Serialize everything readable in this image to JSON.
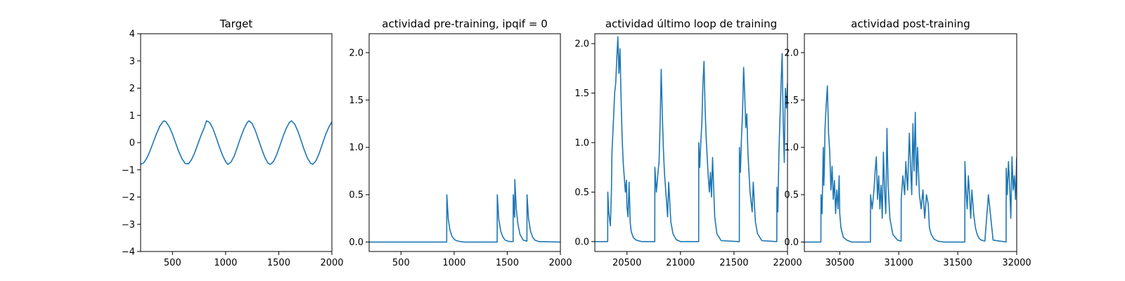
{
  "chart_data": [
    {
      "type": "line",
      "title": "Target",
      "xlabel": "",
      "ylabel": "",
      "xlim": [
        200,
        2000
      ],
      "ylim": [
        -4,
        4
      ],
      "xticks": [
        500,
        1000,
        1500,
        2000
      ],
      "xtick_labels": [
        "500",
        "1000",
        "1500",
        "2000"
      ],
      "yticks": [
        -4,
        -3,
        -2,
        -1,
        0,
        1,
        2,
        3,
        4
      ],
      "ytick_labels": [
        "−4",
        "−3",
        "−2",
        "−1",
        "0",
        "1",
        "2",
        "3",
        "4"
      ],
      "grid": false,
      "series": [
        {
          "color": "#1f77b4",
          "x": [
            200,
            230,
            260,
            290,
            320,
            350,
            380,
            410,
            420,
            440,
            470,
            500,
            530,
            560,
            590,
            620,
            650,
            680,
            710,
            740,
            770,
            800,
            820,
            850,
            880,
            910,
            940,
            970,
            1000,
            1020,
            1050,
            1080,
            1110,
            1140,
            1170,
            1200,
            1220,
            1250,
            1280,
            1310,
            1340,
            1370,
            1400,
            1420,
            1450,
            1480,
            1510,
            1540,
            1570,
            1600,
            1620,
            1650,
            1680,
            1710,
            1740,
            1770,
            1800,
            1820,
            1850,
            1880,
            1910,
            1940,
            1970,
            2000
          ],
          "y": [
            -0.8,
            -0.74,
            -0.56,
            -0.29,
            0.02,
            0.33,
            0.6,
            0.77,
            0.8,
            0.76,
            0.58,
            0.31,
            -0.02,
            -0.34,
            -0.6,
            -0.77,
            -0.78,
            -0.62,
            -0.36,
            -0.04,
            0.28,
            0.56,
            0.8,
            0.74,
            0.52,
            0.2,
            -0.14,
            -0.46,
            -0.7,
            -0.8,
            -0.72,
            -0.5,
            -0.17,
            0.17,
            0.48,
            0.72,
            0.8,
            0.7,
            0.44,
            0.1,
            -0.24,
            -0.55,
            -0.76,
            -0.8,
            -0.7,
            -0.45,
            -0.12,
            0.22,
            0.52,
            0.74,
            0.8,
            0.68,
            0.42,
            0.08,
            -0.27,
            -0.57,
            -0.76,
            -0.8,
            -0.67,
            -0.4,
            -0.06,
            0.28,
            0.56,
            0.76
          ]
        }
      ]
    },
    {
      "type": "line",
      "title": "actividad pre-training, ipqif = 0",
      "xlabel": "",
      "ylabel": "",
      "xlim": [
        200,
        2000
      ],
      "ylim": [
        -0.1,
        2.2
      ],
      "xticks": [
        500,
        1000,
        1500,
        2000
      ],
      "xtick_labels": [
        "500",
        "1000",
        "1500",
        "2000"
      ],
      "yticks": [
        0,
        0.5,
        1,
        1.5,
        2
      ],
      "ytick_labels": [
        "0.0",
        "0.5",
        "1.0",
        "1.5",
        "2.0"
      ],
      "grid": false,
      "series": [
        {
          "color": "#1f77b4",
          "x": [
            200,
            930,
            931,
            945,
            960,
            980,
            1000,
            1020,
            1060,
            1100,
            1405,
            1406,
            1420,
            1440,
            1460,
            1480,
            1520,
            1555,
            1556,
            1565,
            1570,
            1571,
            1585,
            1600,
            1620,
            1650,
            1685,
            1686,
            1700,
            1720,
            1740,
            1760,
            1800,
            2000
          ],
          "y": [
            0,
            0,
            0.5,
            0.24,
            0.13,
            0.06,
            0.03,
            0.015,
            0.004,
            0,
            0,
            0.5,
            0.24,
            0.11,
            0.05,
            0.02,
            0.005,
            0.005,
            0.5,
            0.32,
            0.26,
            0.66,
            0.35,
            0.19,
            0.08,
            0.02,
            0.01,
            0.5,
            0.25,
            0.11,
            0.05,
            0.02,
            0.004,
            0
          ]
        }
      ]
    },
    {
      "type": "line",
      "title": "actividad último loop de training",
      "xlabel": "",
      "ylabel": "",
      "xlim": [
        20200,
        22000
      ],
      "ylim": [
        -0.1,
        2.1
      ],
      "xticks": [
        20500,
        21000,
        21500,
        22000
      ],
      "xtick_labels": [
        "20500",
        "21000",
        "21500",
        "22000"
      ],
      "yticks": [
        0,
        0.5,
        1,
        1.5,
        2
      ],
      "ytick_labels": [
        "0.0",
        "0.5",
        "1.0",
        "1.5",
        "2.0"
      ],
      "grid": false,
      "series": [
        {
          "color": "#1f77b4",
          "x": [
            20200,
            20320,
            20321,
            20330,
            20345,
            20355,
            20360,
            20375,
            20385,
            20395,
            20405,
            20415,
            20425,
            20435,
            20445,
            20455,
            20465,
            20475,
            20485,
            20495,
            20500,
            20510,
            20520,
            20530,
            20540,
            20560,
            20580,
            20600,
            20640,
            20760,
            20761,
            20775,
            20790,
            20800,
            20810,
            20820,
            20830,
            20840,
            20850,
            20860,
            20870,
            20880,
            20890,
            20910,
            20930,
            20960,
            21000,
            21170,
            21171,
            21180,
            21190,
            21200,
            21210,
            21220,
            21230,
            21240,
            21250,
            21260,
            21270,
            21280,
            21290,
            21300,
            21320,
            21340,
            21380,
            21550,
            21551,
            21560,
            21570,
            21580,
            21590,
            21600,
            21610,
            21620,
            21630,
            21640,
            21650,
            21660,
            21670,
            21680,
            21700,
            21720,
            21760,
            21900,
            21901,
            21910,
            21920,
            21930,
            21940,
            21950,
            21960,
            21970,
            21980,
            21990,
            22000
          ],
          "y": [
            0,
            0,
            0.5,
            0.3,
            0.16,
            0.5,
            0.9,
            1.25,
            1.5,
            1.6,
            1.85,
            2.07,
            1.7,
            1.95,
            1.45,
            1.05,
            0.8,
            0.65,
            0.5,
            0.62,
            0.35,
            0.25,
            0.6,
            0.2,
            0.1,
            0.04,
            0.02,
            0.01,
            0,
            0,
            0.75,
            0.5,
            0.7,
            0.8,
            1.2,
            1.74,
            1.3,
            0.95,
            0.7,
            0.55,
            0.4,
            0.25,
            0.6,
            0.2,
            0.08,
            0.02,
            0,
            0,
            1,
            0.75,
            1,
            1.2,
            1.6,
            1.82,
            1.35,
            1.05,
            0.85,
            0.65,
            0.5,
            0.7,
            0.45,
            0.85,
            0.25,
            0.08,
            0.01,
            0,
            0.95,
            0.7,
            1.05,
            1.3,
            1.76,
            1.5,
            1.15,
            1.29,
            0.9,
            0.7,
            0.5,
            0.4,
            0.3,
            0.6,
            0.2,
            0.08,
            0.01,
            0,
            0.55,
            0.3,
            0.9,
            1.25,
            1.6,
            1.9,
            1.2,
            0.8,
            1.55,
            1.35,
            1.6
          ]
        }
      ]
    },
    {
      "type": "line",
      "title": "actividad post-training",
      "xlabel": "",
      "ylabel": "",
      "xlim": [
        30200,
        32000
      ],
      "ylim": [
        -0.1,
        2.2
      ],
      "xticks": [
        30500,
        31000,
        31500,
        32000
      ],
      "xtick_labels": [
        "30500",
        "31000",
        "31500",
        "32000"
      ],
      "yticks": [
        0,
        0.5,
        1,
        1.5,
        2
      ],
      "ytick_labels": [
        "0.0",
        "0.5",
        "1.0",
        "1.5",
        "2.0"
      ],
      "grid": false,
      "series": [
        {
          "color": "#1f77b4",
          "x": [
            30200,
            30340,
            30341,
            30350,
            30360,
            30365,
            30370,
            30375,
            30385,
            30395,
            30405,
            30415,
            30425,
            30435,
            30445,
            30455,
            30465,
            30475,
            30485,
            30495,
            30500,
            30510,
            30530,
            30560,
            30600,
            30760,
            30761,
            30775,
            30790,
            30800,
            30810,
            30820,
            30830,
            30840,
            30850,
            30860,
            30870,
            30880,
            30890,
            30900,
            30910,
            30925,
            30950,
            30990,
            31020,
            31021,
            31035,
            31050,
            31060,
            31075,
            31090,
            31100,
            31110,
            31120,
            31130,
            31140,
            31150,
            31160,
            31175,
            31190,
            31205,
            31220,
            31235,
            31250,
            31260,
            31275,
            31300,
            31330,
            31380,
            31560,
            31561,
            31570,
            31580,
            31590,
            31600,
            31610,
            31620,
            31635,
            31650,
            31665,
            31680,
            31700,
            31730,
            31760,
            31800,
            31910,
            31911,
            31920,
            31930,
            31940,
            31950,
            31960,
            31970,
            31980,
            31990,
            32000
          ],
          "y": [
            0,
            0,
            0.5,
            0.3,
            1.0,
            0.6,
            0.8,
            1.2,
            1.45,
            1.65,
            1.15,
            0.95,
            0.55,
            0.8,
            0.45,
            0.65,
            0.3,
            0.55,
            0.35,
            0.7,
            0.3,
            0.15,
            0.05,
            0.02,
            0,
            0,
            0.5,
            0.35,
            0.55,
            0.75,
            0.9,
            0.45,
            0.7,
            0.35,
            0.6,
            0.25,
            0.95,
            0.55,
            0.3,
            1.2,
            0.6,
            0.25,
            0.08,
            0.02,
            0.01,
            0.45,
            0.7,
            0.5,
            0.85,
            0.55,
            1.15,
            0.8,
            0.5,
            1.25,
            0.75,
            1.37,
            0.6,
            1.0,
            0.5,
            0.35,
            0.55,
            0.25,
            0.5,
            0.4,
            0.15,
            0.08,
            0.03,
            0.01,
            0,
            0,
            0.85,
            0.55,
            0.35,
            0.7,
            0.5,
            0.25,
            0.55,
            0.3,
            0.15,
            0.08,
            0.04,
            0.02,
            0.01,
            0.5,
            0.02,
            0,
            0.78,
            0.5,
            0.85,
            0.6,
            0.25,
            0.9,
            0.55,
            0.7,
            0.45,
            0.9
          ]
        }
      ]
    }
  ]
}
